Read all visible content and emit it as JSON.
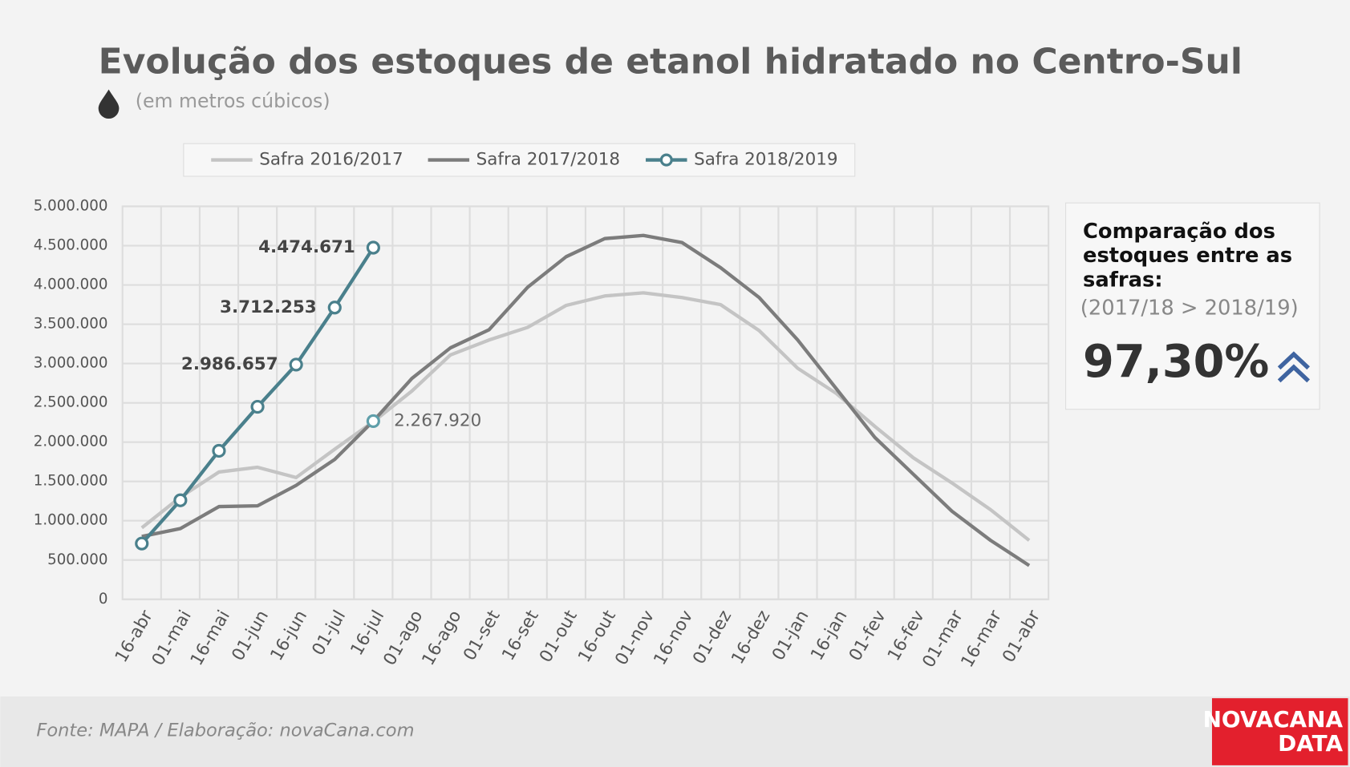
{
  "chart_data": {
    "type": "line",
    "title": "Evolução dos estoques de etanol hidratado no Centro-Sul",
    "subtitle": "(em metros cúbicos)",
    "categories": [
      "16-abr",
      "01-mai",
      "16-mai",
      "01-jun",
      "16-jun",
      "01-jul",
      "16-jul",
      "01-ago",
      "16-ago",
      "01-set",
      "16-set",
      "01-out",
      "16-out",
      "01-nov",
      "16-nov",
      "01-dez",
      "16-dez",
      "01-jan",
      "16-jan",
      "01-fev",
      "16-fev",
      "01-mar",
      "16-mar",
      "01-abr"
    ],
    "series": [
      {
        "name": "Safra 2016/2017",
        "color": "#c4c4c4",
        "values": [
          910000,
          1300000,
          1620000,
          1680000,
          1550000,
          1910000,
          2260000,
          2650000,
          3110000,
          3300000,
          3460000,
          3740000,
          3860000,
          3900000,
          3840000,
          3750000,
          3420000,
          2940000,
          2620000,
          2200000,
          1800000,
          1480000,
          1140000,
          750000
        ]
      },
      {
        "name": "Safra 2017/2018",
        "color": "#7c7c7c",
        "highlight_color": "#5f9faa",
        "values": [
          800000,
          900000,
          1180000,
          1190000,
          1450000,
          1780000,
          2267920,
          2810000,
          3200000,
          3430000,
          3970000,
          4360000,
          4590000,
          4630000,
          4540000,
          4220000,
          3840000,
          3300000,
          2680000,
          2060000,
          1590000,
          1120000,
          750000,
          430000
        ],
        "value_labels": [
          null,
          null,
          null,
          null,
          null,
          null,
          "2.267.920",
          null,
          null,
          null,
          null,
          null,
          null,
          null,
          null,
          null,
          null,
          null,
          null,
          null,
          null,
          null,
          null,
          null
        ]
      },
      {
        "name": "Safra 2018/2019",
        "color": "#4a808c",
        "marker": true,
        "values": [
          710000,
          1260000,
          1890000,
          2450000,
          2986657,
          3712253,
          4474671,
          null,
          null,
          null,
          null,
          null,
          null,
          null,
          null,
          null,
          null,
          null,
          null,
          null,
          null,
          null,
          null,
          null
        ],
        "value_labels": [
          null,
          null,
          null,
          null,
          "2.986.657",
          "3.712.253",
          "4.474.671",
          null,
          null,
          null,
          null,
          null,
          null,
          null,
          null,
          null,
          null,
          null,
          null,
          null,
          null,
          null,
          null,
          null
        ]
      }
    ],
    "ylim": [
      0,
      5000000
    ],
    "yticks": [
      0,
      {
        "value": 500000,
        "label": "500.000"
      },
      {
        "value": 1000000,
        "label": "1.000.000"
      },
      {
        "value": 1500000,
        "label": "1.500.000"
      },
      {
        "value": 2000000,
        "label": "2.000.000"
      },
      {
        "value": 2500000,
        "label": "2.500.000"
      },
      {
        "value": 3000000,
        "label": "3.000.000"
      },
      {
        "value": 3500000,
        "label": "3.500.000"
      },
      {
        "value": 4000000,
        "label": "4.000.000"
      },
      {
        "value": 4500000,
        "label": "4.500.000"
      },
      {
        "value": 5000000,
        "label": "5.000.000"
      }
    ],
    "grid": true,
    "legend": "top"
  },
  "panel": {
    "title": [
      "Comparação dos",
      "estoques entre as",
      "safras:"
    ],
    "comparison": "(2017/18 > 2018/19)",
    "figure": "97,30%"
  },
  "footer": {
    "source": "Fonte: MAPA  / Elaboração: novaCana.com",
    "logo": [
      "NOVACANA",
      "DATA"
    ]
  }
}
